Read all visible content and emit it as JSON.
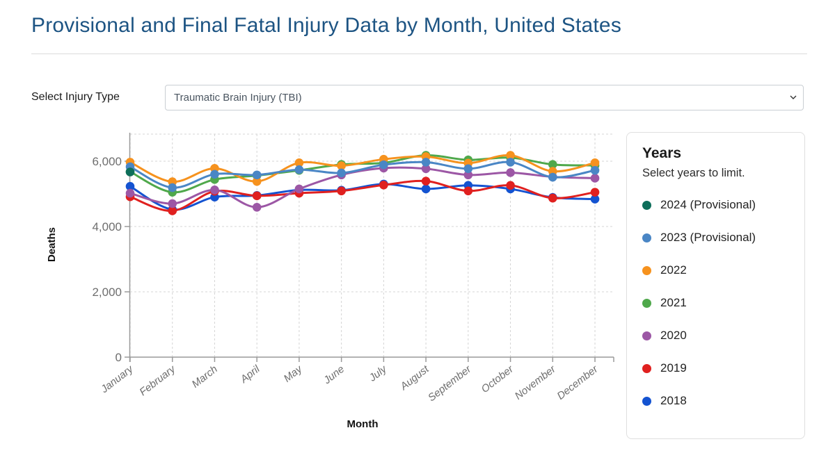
{
  "page": {
    "title": "Provisional and Final Fatal Injury Data by Month, United States"
  },
  "filter": {
    "label": "Select Injury Type",
    "selected_option": "Traumatic Brain Injury (TBI)"
  },
  "legend": {
    "title": "Years",
    "subtitle": "Select years to limit."
  },
  "chart_data": {
    "type": "line",
    "x": [
      "January",
      "February",
      "March",
      "April",
      "May",
      "June",
      "July",
      "August",
      "September",
      "October",
      "November",
      "December"
    ],
    "xlabel": "Month",
    "ylabel": "Deaths",
    "ylim": [
      0,
      6800
    ],
    "yticks": [
      0,
      2000,
      4000,
      6000
    ],
    "ytick_labels": [
      "0",
      "2,000",
      "4,000",
      "6,000"
    ],
    "grid": true,
    "legend_position": "right",
    "series": [
      {
        "name": "2024 (Provisional)",
        "color": "#0d6e5a",
        "values": [
          5670,
          null,
          null,
          null,
          null,
          null,
          null,
          null,
          null,
          null,
          null,
          null
        ]
      },
      {
        "name": "2023 (Provisional)",
        "color": "#4a86c5",
        "values": [
          5830,
          5190,
          5600,
          5580,
          5740,
          5640,
          5890,
          5970,
          5770,
          5970,
          5510,
          5720
        ]
      },
      {
        "name": "2022",
        "color": "#f6921e",
        "values": [
          5970,
          5370,
          5780,
          5380,
          5950,
          5860,
          6060,
          6140,
          5940,
          6180,
          5690,
          5950
        ]
      },
      {
        "name": "2021",
        "color": "#4fa84b",
        "values": [
          5680,
          5050,
          5440,
          5560,
          5720,
          5900,
          5950,
          6180,
          6040,
          6110,
          5900,
          5870
        ]
      },
      {
        "name": "2020",
        "color": "#9c57a5",
        "values": [
          5020,
          4700,
          5120,
          4590,
          5150,
          5580,
          5790,
          5770,
          5580,
          5650,
          5520,
          5480
        ]
      },
      {
        "name": "2019",
        "color": "#e0201f",
        "values": [
          4910,
          4480,
          5080,
          4940,
          5020,
          5090,
          5270,
          5390,
          5090,
          5260,
          4870,
          5050
        ]
      },
      {
        "name": "2018",
        "color": "#1453d1",
        "values": [
          5230,
          4520,
          4900,
          4950,
          5120,
          5110,
          5300,
          5150,
          5260,
          5150,
          4890,
          4840
        ]
      }
    ]
  }
}
